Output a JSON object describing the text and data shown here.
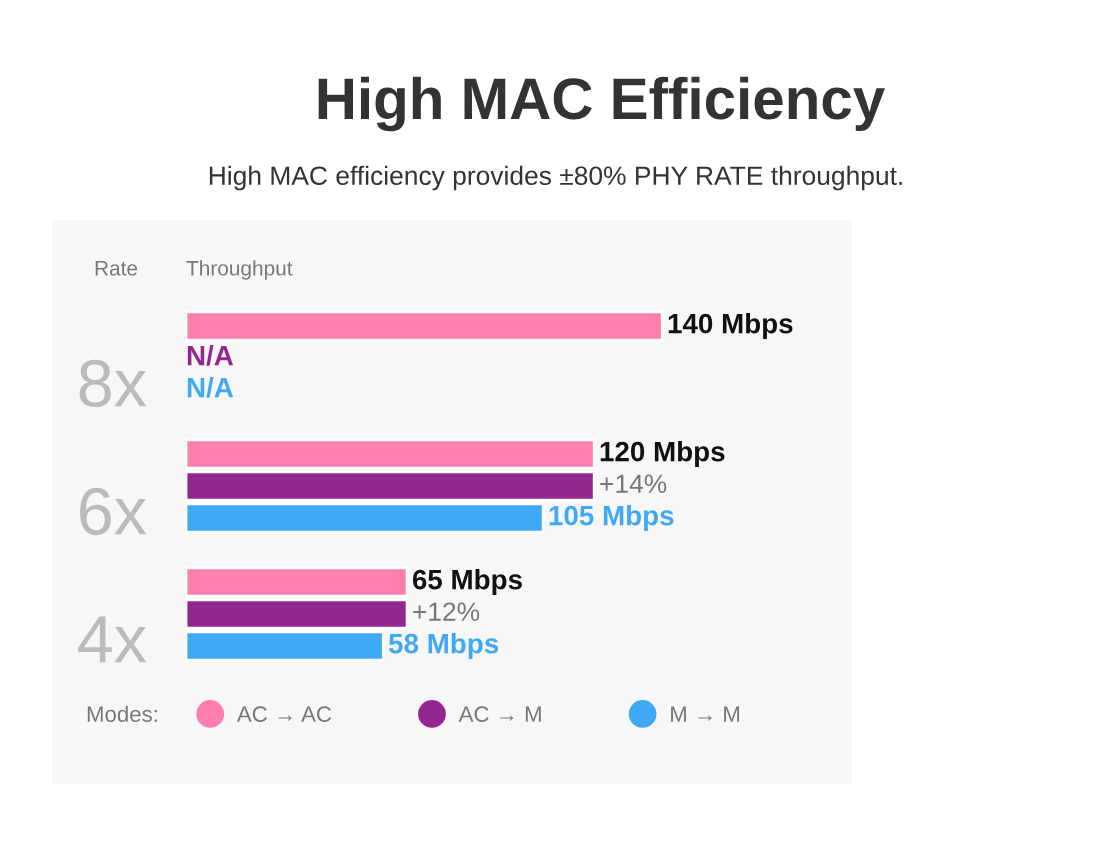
{
  "chart_data": {
    "type": "bar",
    "orientation": "horizontal",
    "title": "High MAC Efficiency",
    "subtitle": "High MAC efficiency provides ±80% PHY RATE throughput.",
    "ylabel": "Rate",
    "xlabel": "Throughput",
    "legend_title": "Modes:",
    "categories": [
      "8x",
      "6x",
      "4x"
    ],
    "series": [
      {
        "name": "AC → AC",
        "color": "#ff7eb0",
        "values": [
          140,
          120,
          65
        ],
        "value_labels": [
          "140 Mbps",
          "120 Mbps",
          "65 Mbps"
        ]
      },
      {
        "name": "AC → M",
        "color": "#93278f",
        "values": [
          null,
          120,
          65
        ],
        "value_labels": [
          "N/A",
          null,
          null
        ]
      },
      {
        "name": "M → M",
        "color": "#3fa9f5",
        "values": [
          null,
          105,
          58
        ],
        "value_labels": [
          "N/A",
          "105 Mbps",
          "58 Mbps"
        ]
      }
    ],
    "annotations": [
      "+14%",
      "+12%"
    ],
    "legend": "bottom",
    "grid": false,
    "tick_labels": "y"
  }
}
